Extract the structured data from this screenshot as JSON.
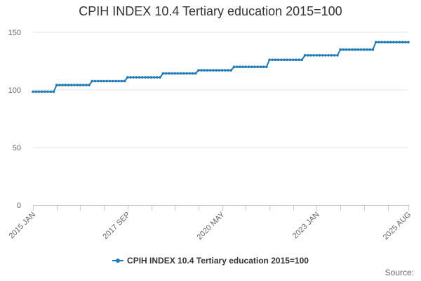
{
  "chart_data": {
    "type": "line",
    "title": "CPIH INDEX 10.4 Tertiary education 2015=100",
    "xlabel": "",
    "ylabel": "",
    "ylim": [
      0,
      150
    ],
    "yticks": [
      0,
      50,
      100,
      150
    ],
    "x_tick_labels": [
      "2015 JAN",
      "2017 SEP",
      "2020 MAY",
      "2023 JAN",
      "2025 AUG"
    ],
    "x_start": "2015-01",
    "x_end": "2025-08",
    "grid": true,
    "legend_position": "bottom",
    "series": [
      {
        "name": "CPIH INDEX 10.4 Tertiary education 2015=100",
        "color": "#1f7ab8",
        "step_changes": [
          {
            "from": "2015-01",
            "value": 98.5
          },
          {
            "from": "2015-09",
            "value": 104.2
          },
          {
            "from": "2016-09",
            "value": 107.6
          },
          {
            "from": "2017-09",
            "value": 110.9
          },
          {
            "from": "2018-09",
            "value": 114.3
          },
          {
            "from": "2019-09",
            "value": 117.0
          },
          {
            "from": "2020-09",
            "value": 120.0
          },
          {
            "from": "2021-09",
            "value": 126.1
          },
          {
            "from": "2022-09",
            "value": 130.0
          },
          {
            "from": "2023-09",
            "value": 135.0
          },
          {
            "from": "2024-09",
            "value": 141.5
          }
        ]
      }
    ]
  },
  "credits": "Source: "
}
